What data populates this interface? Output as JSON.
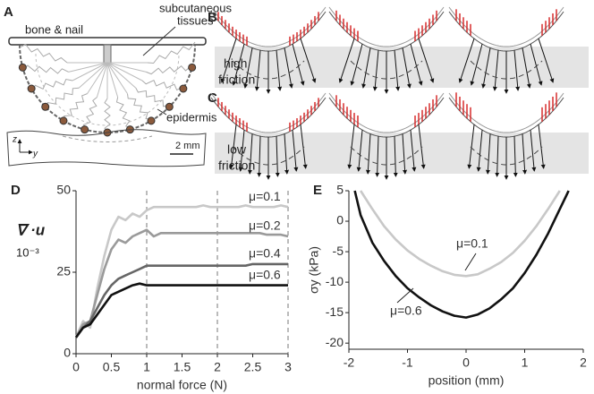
{
  "figure": {
    "panel_a": {
      "letter": "A",
      "bar_label": "bone & nail",
      "tissue_label": [
        "subcutaneous",
        "tissues"
      ],
      "skin_label": "epidermis",
      "axis_z": "z",
      "axis_y": "y",
      "scale_label": "2 mm"
    },
    "panel_b": {
      "letter": "B",
      "band_label": [
        "high",
        "friction"
      ]
    },
    "panel_c": {
      "letter": "C",
      "band_label": [
        "low",
        "friction"
      ]
    }
  },
  "chart_data": [
    {
      "type": "line",
      "panel": "D",
      "x_label": "normal force (N)",
      "y_label": "∇ ·u",
      "y_unit": "10⁻³",
      "x": [
        0,
        0.1,
        0.2,
        0.3,
        0.4,
        0.5,
        0.6,
        0.7,
        0.8,
        0.9,
        1.0,
        1.1,
        1.2,
        1.3,
        1.4,
        1.5,
        1.6,
        1.7,
        1.8,
        1.9,
        2.0,
        2.1,
        2.2,
        2.3,
        2.4,
        2.5,
        2.6,
        2.7,
        2.8,
        2.9,
        3.0
      ],
      "series": [
        {
          "name": "μ=0.1",
          "color": "#c8c8c8",
          "values": [
            5,
            10,
            8,
            20,
            30,
            38,
            42,
            41,
            43,
            42,
            44,
            45,
            45,
            45,
            45,
            45,
            45,
            45,
            45.5,
            45,
            45,
            45,
            45,
            45,
            45.5,
            45,
            45,
            45,
            45,
            45.5,
            45
          ]
        },
        {
          "name": "μ=0.2",
          "color": "#9a9a9a",
          "values": [
            5,
            9,
            10,
            18,
            26,
            32,
            35,
            34,
            36,
            37,
            38,
            36,
            37,
            37,
            37,
            37,
            37,
            37,
            37,
            37,
            37,
            37,
            37,
            37,
            37,
            37,
            37,
            36.5,
            36.5,
            36.5,
            36
          ]
        },
        {
          "name": "μ=0.4",
          "color": "#666666",
          "values": [
            5,
            8,
            10,
            14,
            18,
            21,
            23,
            24,
            25,
            26,
            27,
            27,
            27,
            27,
            27,
            27,
            27,
            27,
            27,
            27,
            27,
            27,
            27,
            27,
            27,
            27.5,
            27.5,
            27.5,
            27.5,
            27.5,
            27.5
          ]
        },
        {
          "name": "μ=0.6",
          "color": "#111111",
          "values": [
            5,
            8,
            9,
            12,
            15,
            18,
            19,
            20,
            21,
            21.5,
            21,
            21,
            21,
            21,
            21,
            21,
            21,
            21,
            21,
            21,
            21,
            21,
            21,
            21,
            21,
            21,
            21,
            21,
            21,
            21,
            21
          ]
        }
      ],
      "vlines": [
        1,
        2,
        3
      ],
      "xlim": [
        0,
        3
      ],
      "xticks": [
        0,
        0.5,
        1,
        1.5,
        2,
        2.5,
        3
      ],
      "ylim": [
        0,
        50
      ],
      "yticks": [
        0,
        25,
        50
      ]
    },
    {
      "type": "line",
      "panel": "E",
      "x_label": "position (mm)",
      "y_label": "σy (kPa)",
      "x": [
        -1.9,
        -1.8,
        -1.6,
        -1.4,
        -1.2,
        -1.0,
        -0.8,
        -0.6,
        -0.4,
        -0.2,
        0,
        0.2,
        0.4,
        0.6,
        0.8,
        1.0,
        1.2,
        1.4,
        1.6,
        1.7,
        1.75
      ],
      "series": [
        {
          "name": "μ=0.1",
          "color": "#c8c8c8",
          "values": [
            null,
            5,
            2,
            -0.8,
            -3,
            -4.8,
            -6.2,
            -7.3,
            -8.2,
            -8.8,
            -9,
            -8.7,
            -7.8,
            -6.7,
            -5.2,
            -3.2,
            -0.8,
            2,
            5,
            null,
            null
          ]
        },
        {
          "name": "μ=0.6",
          "color": "#111111",
          "values": [
            5,
            1,
            -3.5,
            -6.5,
            -9,
            -11,
            -12.5,
            -13.8,
            -14.8,
            -15.5,
            -15.8,
            -15.3,
            -14.3,
            -12.8,
            -11,
            -8.5,
            -5.5,
            -2,
            2,
            4,
            5
          ]
        }
      ],
      "xlim": [
        -2,
        2
      ],
      "xticks": [
        -2,
        -1,
        0,
        1,
        2
      ],
      "ylim": [
        -21,
        5
      ],
      "yticks": [
        5,
        0,
        -5,
        -10,
        -15,
        -20
      ]
    }
  ]
}
